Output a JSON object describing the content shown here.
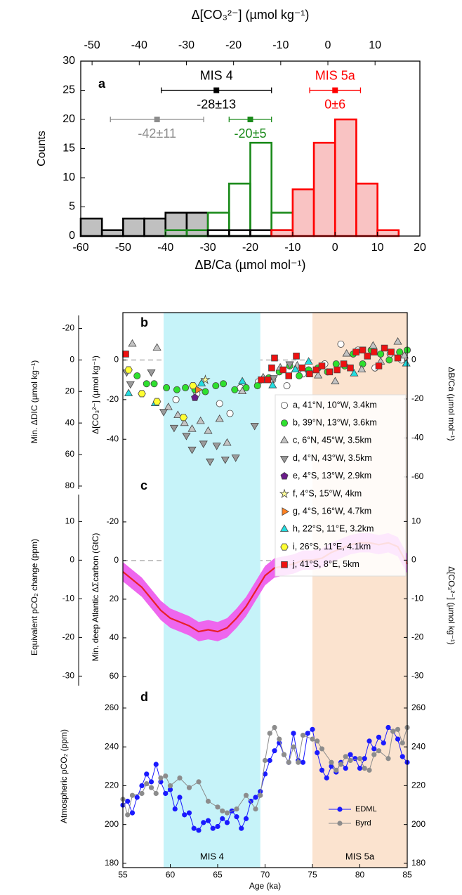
{
  "chart_data": [
    {
      "type": "histogram",
      "panel_label": "a",
      "xlabel": "ΔB/Ca (µmol mol⁻¹)",
      "x2label": "Δ[CO₃²⁻] (µmol kg⁻¹)",
      "ylabel": "Counts",
      "xlim": [
        -60,
        20
      ],
      "xticks": [
        -60,
        -50,
        -40,
        -30,
        -20,
        -10,
        0,
        10,
        20
      ],
      "x2lim": [
        -52.4,
        19.5
      ],
      "x2ticks": [
        -50,
        -40,
        -30,
        -20,
        -10,
        0,
        10
      ],
      "ylim": [
        0,
        30
      ],
      "yticks": [
        0,
        5,
        10,
        15,
        20,
        25,
        30
      ],
      "series": [
        {
          "color": "#000000",
          "fill": "#c0c0c0",
          "bins": [
            -60,
            -55,
            -50,
            -45,
            -40,
            -35,
            -30
          ],
          "counts": [
            3,
            1,
            3,
            3,
            4,
            4
          ]
        },
        {
          "color": "#1a8a1a",
          "bins": [
            -40,
            -35,
            -30,
            -25,
            -20,
            -15,
            -10
          ],
          "counts": [
            1,
            1,
            4,
            9,
            16,
            4
          ]
        },
        {
          "color": "#000000",
          "bins": [
            -30,
            -25,
            -20,
            -15,
            -10
          ],
          "counts": [
            1,
            1,
            1,
            1
          ]
        },
        {
          "color": "#ff0000",
          "fill": "#f9c3c3",
          "bins": [
            -15,
            -10,
            -5,
            0,
            5,
            10,
            15
          ],
          "counts": [
            1,
            8,
            16,
            20,
            9,
            1
          ]
        }
      ],
      "points": [
        {
          "value": -42,
          "error": 11,
          "y": 20,
          "value_label": "-42±11",
          "color": "#8c8c8c"
        },
        {
          "name": "MIS 4",
          "value": -28,
          "error": 13,
          "y": 25,
          "value_label": "-28±13",
          "color": "#000000"
        },
        {
          "value": -20,
          "error": 5,
          "y": 20,
          "value_label": "-20±5",
          "color": "#1a8a1a"
        },
        {
          "name": "MIS 5a",
          "value": 0,
          "error": 6,
          "y": 25,
          "value_label": "0±6",
          "color": "#ff0000"
        }
      ]
    },
    {
      "type": "scatter",
      "panel_label": "b",
      "zero_line": true,
      "ylabel": "Δ[CO₃²⁻] (µmol kg⁻¹)",
      "ylim": [
        -66.5,
        23.9
      ],
      "yticks": [
        0,
        -20,
        -40
      ],
      "y2label": "ΔB/Ca (µmol mol⁻¹)",
      "y2lim": [
        -67.6,
        24.3
      ],
      "y2ticks": [
        0,
        -20,
        -40,
        -60
      ],
      "y3label": "Min. ΔDIC (µmol kg⁻¹)",
      "y3lim": [
        83.6,
        -30
      ],
      "y3ticks": [
        -20,
        0,
        20,
        40,
        60,
        80
      ],
      "series": [
        {
          "name": "a, 41°N, 10°W, 3.4km",
          "marker": "circle",
          "color": "#ffffff",
          "x": [
            60.6,
            62.8,
            65.2,
            66.3,
            67.4,
            69.3,
            70.8,
            72.3,
            74.0,
            76.3,
            78.0,
            79.8,
            81.6,
            83.2,
            84.4
          ],
          "values": [
            -20,
            -17,
            -22,
            -27,
            -14,
            -11,
            -10,
            -13,
            -7,
            -2,
            8,
            5,
            -4,
            3,
            0
          ]
        },
        {
          "name": "b, 39°N, 13°W, 3.6km",
          "marker": "circle",
          "color": "#2ee02e",
          "x": [
            56.5,
            57.5,
            58.3,
            59.6,
            60.7,
            61.6,
            62.6,
            63.7,
            64.8,
            65.6,
            66.8,
            68.0,
            69.2,
            70.4,
            71.5,
            72.6,
            73.6,
            74.6,
            75.6,
            76.6,
            77.5,
            78.4,
            79.3,
            80.3,
            81.2,
            82.2,
            83.1,
            84.2,
            85.0
          ],
          "values": [
            -8,
            -12,
            -12,
            -14,
            -15,
            -14,
            -15,
            -16,
            -13,
            -12,
            -15,
            -14,
            -13,
            -9,
            -6,
            -3,
            -8,
            -5,
            -4,
            -6,
            -2,
            -3,
            3,
            -2,
            5,
            3,
            0,
            4,
            5
          ]
        },
        {
          "name": "c, 6°N, 45°W, 3.5km",
          "marker": "triangle-up",
          "color": "#c4c4c4",
          "x": [
            56.0,
            58.6,
            59.8,
            60.8,
            61.5,
            62.3,
            63.2,
            64.0,
            65.2,
            66.0,
            67.6,
            69.8,
            71.6,
            73.4,
            75.6,
            77.4,
            78.6,
            80.2,
            81.4,
            82.2,
            84.0,
            84.7
          ],
          "values": [
            8,
            6,
            -24,
            -28,
            -32,
            -35,
            -31,
            -36,
            -30,
            -42,
            -16,
            -9,
            -4,
            -3,
            -8,
            -11,
            3,
            -5,
            7,
            -1,
            9,
            2
          ]
        },
        {
          "name": "d, 4°N, 43°W, 3.5km",
          "marker": "triangle-down",
          "color": "#9a9a9a",
          "x": [
            55.4,
            55.8,
            58.0,
            59.3,
            60.4,
            61.7,
            62.3,
            63.5,
            64.2,
            64.9,
            65.8,
            66.9,
            68.9,
            70.9,
            72.6
          ],
          "values": [
            -6,
            -12,
            -6,
            -26,
            -34,
            -38,
            -45,
            -42,
            -51,
            -43,
            -50,
            -49,
            -33,
            -9,
            -2
          ]
        },
        {
          "name": "e, 4°S, 13°W, 2.9km",
          "marker": "pentagon",
          "color": "#6a1b8a",
          "x": [
            62.6
          ],
          "values": [
            -19
          ]
        },
        {
          "name": "f, 4°S, 15°W, 4km",
          "marker": "star",
          "color": "#ffff99",
          "x": [
            63.7
          ],
          "values": [
            -10
          ]
        },
        {
          "name": "g, 4°S, 16°W, 4.7km",
          "marker": "triangle-right",
          "color": "#ff8020",
          "x": [
            62.9
          ],
          "values": [
            -15
          ]
        },
        {
          "name": "h, 22°S, 11°E, 3.2km",
          "marker": "triangle-up",
          "color": "#22dde0",
          "x": [
            55.6,
            58.4,
            63.3,
            67.6,
            70.8,
            73.2,
            74.6,
            79.4,
            84.9
          ],
          "values": [
            -17,
            -22,
            -12,
            -11,
            -13,
            -5,
            -1,
            -7,
            -2
          ]
        },
        {
          "name": "i, 26°S, 11°E, 4.1km",
          "marker": "hexagon",
          "color": "#ffff33",
          "x": [
            55.6,
            57.0,
            58.6,
            61.4,
            62.4
          ],
          "values": [
            -5,
            -17,
            -21,
            -29,
            -13
          ]
        },
        {
          "name": "j, 41°S, 8°E, 5km",
          "marker": "square",
          "color": "#ee1111",
          "x": [
            55.3,
            69.6,
            70.3,
            70.7,
            71.0,
            71.9,
            72.5,
            73.3,
            73.9,
            74.7,
            75.4,
            76.0,
            76.8,
            77.6,
            78.3,
            79.0,
            79.6,
            80.3,
            80.8,
            81.5,
            82.0,
            82.6,
            83.3,
            84.0
          ],
          "values": [
            3,
            -10,
            -10,
            -4,
            1,
            -5,
            -8,
            2,
            -4,
            -7,
            -5,
            -3,
            -6,
            -5,
            -2,
            -4,
            4,
            5,
            2,
            4,
            -3,
            6,
            4,
            1
          ]
        }
      ]
    },
    {
      "type": "line",
      "panel_label": "c",
      "zero_line": true,
      "ylabel": "Min. deep Atlantic ΔΣcarbon (GtC)",
      "ylim": [
        66.2,
        -35.6
      ],
      "yticks": [
        -20,
        0,
        20,
        40,
        60
      ],
      "y2label": "Δ[CO₃²⁻] (µmol kg⁻¹)",
      "y2lim": [
        -33.2,
        17.7
      ],
      "y2ticks": [
        10,
        0,
        -10,
        -20,
        -30
      ],
      "y3label": "Equivalent pCO₂ change (ppm)",
      "y3lim": [
        -33.2,
        17.7
      ],
      "y3ticks": [
        10,
        0,
        -10,
        -20,
        -30
      ],
      "series": [
        {
          "color": "#e8202a",
          "band_color": "#ee66ee",
          "band": 2.5,
          "axis": "y2",
          "x": [
            55,
            56,
            57,
            58,
            59,
            60,
            61,
            62,
            63,
            64,
            65,
            66,
            67,
            68,
            69,
            70,
            71,
            72,
            73,
            74,
            75,
            76,
            77,
            78,
            79,
            80,
            81,
            82,
            83,
            84,
            85
          ],
          "values": [
            -3,
            -5,
            -7,
            -10,
            -13,
            -15,
            -16,
            -17,
            -18.5,
            -18,
            -18.5,
            -17.5,
            -15,
            -12,
            -8,
            -4,
            -2,
            -1.5,
            -1,
            0,
            0,
            0.5,
            2,
            3,
            4,
            4.5,
            4.5,
            4,
            4.5,
            3.5,
            -1
          ]
        }
      ]
    },
    {
      "type": "line",
      "panel_label": "d",
      "xlabel": "Age (ka)",
      "xlim": [
        55,
        85
      ],
      "xticks": [
        55,
        60,
        65,
        70,
        75,
        80,
        85
      ],
      "ylabel": "Atmospheric pCO₂ (ppm)",
      "ylim": [
        177.8,
        270.1
      ],
      "yticks": [
        180,
        200,
        220,
        240,
        260
      ],
      "y2lim": [
        177.8,
        270.1
      ],
      "y2ticks": [
        180,
        200,
        220,
        240,
        260
      ],
      "regions": [
        {
          "label": "MIS 4",
          "x": [
            59.3,
            69.5
          ],
          "color": "#c6f3f9"
        },
        {
          "label": "MIS 5a",
          "x": [
            75,
            85
          ],
          "color": "#fbe3cf"
        }
      ],
      "series": [
        {
          "name": "EDML",
          "color": "#1a1aff",
          "marker": "circle",
          "x": [
            55,
            55.5,
            56,
            56.5,
            57,
            57.5,
            58,
            58.5,
            59,
            59.5,
            60,
            60.5,
            61,
            61.5,
            62,
            62.5,
            63,
            63.5,
            64,
            64.5,
            65,
            65.5,
            66,
            66.5,
            67,
            67.5,
            68,
            68.5,
            69,
            69.5,
            70,
            70.5,
            71,
            71.5,
            72,
            72.5,
            73,
            73.5,
            74,
            74.5,
            75,
            75.5,
            76,
            76.5,
            77,
            77.5,
            78,
            78.5,
            79,
            79.5,
            80,
            80.5,
            81,
            81.5,
            82,
            82.5,
            83,
            83.5,
            84,
            84.5,
            85
          ],
          "values": [
            210,
            212,
            206,
            214,
            220,
            226,
            222,
            231,
            222,
            216,
            218,
            208,
            214,
            205,
            206,
            198,
            197,
            201,
            202,
            198,
            199,
            203,
            201,
            207,
            204,
            198,
            203,
            212,
            214,
            217,
            226,
            233,
            238,
            242,
            236,
            232,
            247,
            233,
            232,
            247,
            249,
            237,
            228,
            224,
            230,
            227,
            232,
            229,
            236,
            234,
            229,
            234,
            243,
            239,
            245,
            242,
            250,
            248,
            244,
            235,
            232
          ]
        },
        {
          "name": "Byrd",
          "color": "#8c8c8c",
          "marker": "circle",
          "x": [
            55,
            55.5,
            56,
            57,
            57.5,
            58,
            58.5,
            59,
            59.5,
            60,
            61,
            62,
            63,
            64,
            65,
            65.5,
            66,
            67,
            68,
            69,
            69.5,
            70,
            70.5,
            71,
            71.5,
            72,
            72.5,
            73,
            73.5,
            74,
            75,
            75.5,
            76,
            77,
            77.5,
            78,
            78.5,
            79,
            80,
            80.5,
            81,
            81.5,
            82,
            83,
            83.5,
            84,
            84.5,
            85
          ],
          "values": [
            213,
            205,
            215,
            216,
            221,
            219,
            216,
            224,
            225,
            220,
            224,
            219,
            222,
            212,
            209,
            207,
            206,
            208,
            215,
            208,
            215,
            233,
            247,
            250,
            244,
            236,
            232,
            240,
            232,
            246,
            244,
            243,
            239,
            232,
            228,
            231,
            235,
            233,
            234,
            229,
            228,
            236,
            238,
            234,
            248,
            249,
            242,
            250
          ]
        }
      ]
    }
  ]
}
